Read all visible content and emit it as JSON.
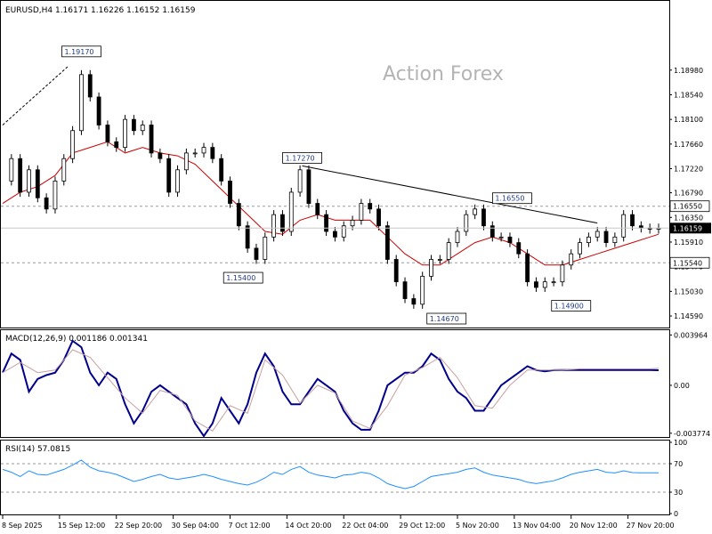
{
  "chart_data": [
    {
      "type": "candlestick",
      "panel": "price",
      "header": "EURUSD,H4  1.16171 1.16226 1.16152 1.16159",
      "watermark": "Action Forex",
      "ylim": [
        1.144,
        1.202
      ],
      "y_ticks": [
        "1.18980",
        "1.18540",
        "1.18100",
        "1.17660",
        "1.17220",
        "1.16790",
        "1.16350",
        "1.15910",
        "1.15470",
        "1.15030",
        "1.14590"
      ],
      "current_price": "1.16159",
      "series": [
        {
          "name": "EURUSD H4 close",
          "color": "#000000",
          "x": [
            0,
            4,
            8,
            12,
            16,
            20,
            24,
            28,
            32,
            36,
            40,
            44,
            48,
            52,
            56,
            60,
            64,
            68,
            72,
            76,
            80,
            84,
            88,
            92,
            96,
            100,
            104,
            108,
            112,
            116,
            120,
            124,
            128,
            132,
            136,
            140,
            144,
            148,
            152,
            156,
            160,
            164,
            168,
            172,
            176,
            180,
            184,
            188,
            192,
            196,
            200,
            204,
            208,
            212,
            216,
            220,
            224,
            228,
            232,
            236,
            240,
            244,
            248,
            252,
            256,
            260,
            264,
            268,
            272,
            276,
            280,
            284,
            288,
            292,
            296,
            300
          ],
          "values": [
            1.17,
            1.174,
            1.168,
            1.172,
            1.167,
            1.165,
            1.17,
            1.174,
            1.179,
            1.189,
            1.185,
            1.18,
            1.177,
            1.176,
            1.181,
            1.179,
            1.18,
            1.175,
            1.174,
            1.168,
            1.172,
            1.175,
            1.175,
            1.176,
            1.174,
            1.17,
            1.166,
            1.162,
            1.158,
            1.156,
            1.16,
            1.164,
            1.161,
            1.168,
            1.172,
            1.166,
            1.164,
            1.161,
            1.16,
            1.162,
            1.163,
            1.166,
            1.165,
            1.162,
            1.156,
            1.152,
            1.149,
            1.148,
            1.153,
            1.156,
            1.156,
            1.159,
            1.161,
            1.164,
            1.165,
            1.162,
            1.16,
            1.16,
            1.159,
            1.157,
            1.152,
            1.151,
            1.152,
            1.152,
            1.155,
            1.157,
            1.159,
            1.16,
            1.161,
            1.159,
            1.16,
            1.164,
            1.162,
            1.1616,
            1.1614,
            1.16159
          ]
        },
        {
          "name": "moving average",
          "color": "#cc0000",
          "x": [
            0,
            8,
            16,
            24,
            32,
            40,
            48,
            56,
            64,
            72,
            80,
            88,
            96,
            104,
            112,
            120,
            128,
            136,
            144,
            152,
            160,
            168,
            176,
            184,
            192,
            200,
            208,
            216,
            224,
            232,
            240,
            248,
            256,
            264,
            272,
            280,
            288,
            296,
            300
          ],
          "values": [
            1.166,
            1.168,
            1.169,
            1.171,
            1.175,
            1.176,
            1.177,
            1.175,
            1.176,
            1.175,
            1.1745,
            1.173,
            1.17,
            1.167,
            1.164,
            1.161,
            1.1605,
            1.163,
            1.164,
            1.163,
            1.163,
            1.163,
            1.16,
            1.157,
            1.155,
            1.155,
            1.157,
            1.159,
            1.16,
            1.159,
            1.157,
            1.155,
            1.155,
            1.156,
            1.157,
            1.158,
            1.159,
            1.16,
            1.1605
          ]
        }
      ],
      "annotations": [
        {
          "label": "1.19170",
          "x": 36,
          "y": 1.1917
        },
        {
          "label": "1.15400",
          "x": 110,
          "y": 1.154
        },
        {
          "label": "1.17270",
          "x": 137,
          "y": 1.1727
        },
        {
          "label": "1.14670",
          "x": 203,
          "y": 1.1467
        },
        {
          "label": "1.16550",
          "x": 233,
          "y": 1.1655
        },
        {
          "label": "1.14900",
          "x": 260,
          "y": 1.149
        },
        {
          "label": "1.16550",
          "x": 300,
          "y": 1.1655
        },
        {
          "label": "1.15540",
          "x": 300,
          "y": 1.1554
        }
      ],
      "levels": [
        1.1655,
        1.1554
      ],
      "trendline": {
        "x": [
          137,
          272
        ],
        "y": [
          1.1727,
          1.1625
        ]
      }
    },
    {
      "type": "line",
      "panel": "macd",
      "header": "MACD(12,26,9) 0.001186 0.001341",
      "ylim": [
        -0.004,
        0.0042
      ],
      "y_ticks": [
        "0.003964",
        "0.00",
        "-0.003774"
      ],
      "series": [
        {
          "name": "MACD main",
          "color": "#00008b",
          "x": [
            0,
            4,
            8,
            12,
            16,
            20,
            24,
            28,
            32,
            36,
            40,
            44,
            48,
            52,
            56,
            60,
            64,
            68,
            72,
            76,
            80,
            84,
            88,
            92,
            96,
            100,
            104,
            108,
            112,
            116,
            120,
            124,
            128,
            132,
            136,
            140,
            144,
            148,
            152,
            156,
            160,
            164,
            168,
            172,
            176,
            180,
            184,
            188,
            192,
            196,
            200,
            204,
            208,
            212,
            216,
            220,
            224,
            228,
            232,
            236,
            240,
            244,
            248,
            252,
            256,
            260,
            264,
            268,
            272,
            276,
            280,
            284,
            288,
            292,
            296,
            300
          ],
          "values": [
            0.001,
            0.0025,
            0.002,
            -0.0005,
            0.0005,
            0.0008,
            0.001,
            0.002,
            0.0035,
            0.003,
            0.001,
            0.0,
            0.001,
            0.0005,
            -0.0015,
            -0.003,
            -0.002,
            -0.0005,
            0.0,
            -0.0005,
            -0.001,
            -0.0015,
            -0.003,
            -0.004,
            -0.003,
            -0.001,
            -0.002,
            -0.003,
            -0.0015,
            0.001,
            0.0025,
            0.0015,
            -0.0005,
            -0.0015,
            -0.0015,
            -0.0005,
            0.0005,
            0.0,
            -0.0005,
            -0.002,
            -0.003,
            -0.0035,
            -0.0035,
            -0.002,
            0.0,
            0.0005,
            0.001,
            0.001,
            0.0015,
            0.0025,
            0.002,
            0.0005,
            -0.0005,
            -0.001,
            -0.002,
            -0.002,
            -0.001,
            0.0,
            0.0005,
            0.001,
            0.0015,
            0.0012,
            0.0011,
            0.00119,
            0.0012,
            0.0012,
            0.0012,
            0.0012,
            0.0012,
            0.0012,
            0.0012,
            0.0012,
            0.0012,
            0.0012,
            0.0012,
            0.001186
          ]
        },
        {
          "name": "MACD signal",
          "color": "#c8a0a0",
          "x": [
            0,
            8,
            16,
            24,
            32,
            40,
            48,
            56,
            64,
            72,
            80,
            88,
            96,
            104,
            112,
            120,
            128,
            136,
            144,
            152,
            160,
            168,
            176,
            184,
            192,
            200,
            208,
            216,
            224,
            232,
            240,
            248,
            256,
            264,
            272,
            280,
            288,
            296,
            300
          ],
          "values": [
            0.001,
            0.0018,
            0.001,
            0.0012,
            0.0028,
            0.0022,
            0.0006,
            -0.001,
            -0.0022,
            -0.0004,
            -0.0008,
            -0.0028,
            -0.0036,
            -0.0016,
            -0.0022,
            0.002,
            0.0008,
            -0.0014,
            0.0,
            -0.0006,
            -0.0028,
            -0.0034,
            -0.0016,
            0.0008,
            0.0014,
            0.0022,
            0.0006,
            -0.0016,
            -0.0018,
            0.0,
            0.0012,
            0.0012,
            0.0012,
            0.0013,
            0.0013,
            0.0013,
            0.0013,
            0.0013,
            0.001341
          ]
        }
      ]
    },
    {
      "type": "line",
      "panel": "rsi",
      "header": "RSI(14) 57.0815",
      "ylim": [
        0,
        100
      ],
      "y_ticks": [
        "100",
        "70",
        "30",
        "0"
      ],
      "levels": [
        70,
        30
      ],
      "series": [
        {
          "name": "RSI",
          "color": "#1e90ff",
          "x": [
            0,
            4,
            8,
            12,
            16,
            20,
            24,
            28,
            32,
            36,
            40,
            44,
            48,
            52,
            56,
            60,
            64,
            68,
            72,
            76,
            80,
            84,
            88,
            92,
            96,
            100,
            104,
            108,
            112,
            116,
            120,
            124,
            128,
            132,
            136,
            140,
            144,
            148,
            152,
            156,
            160,
            164,
            168,
            172,
            176,
            180,
            184,
            188,
            192,
            196,
            200,
            204,
            208,
            212,
            216,
            220,
            224,
            228,
            232,
            236,
            240,
            244,
            248,
            252,
            256,
            260,
            264,
            268,
            272,
            276,
            280,
            284,
            288,
            292,
            296,
            300
          ],
          "values": [
            62,
            58,
            52,
            60,
            55,
            54,
            58,
            62,
            68,
            75,
            65,
            60,
            58,
            55,
            50,
            45,
            48,
            52,
            55,
            50,
            48,
            50,
            52,
            55,
            52,
            48,
            45,
            42,
            40,
            44,
            50,
            58,
            55,
            62,
            66,
            58,
            54,
            52,
            50,
            54,
            55,
            58,
            56,
            50,
            42,
            38,
            35,
            38,
            45,
            52,
            54,
            56,
            58,
            62,
            64,
            58,
            54,
            52,
            50,
            48,
            44,
            42,
            44,
            46,
            50,
            55,
            58,
            60,
            62,
            58,
            57,
            60,
            57.5,
            57.2,
            57.1,
            57.0815
          ]
        }
      ]
    }
  ],
  "x_axis": {
    "labels": [
      {
        "text": "8 Sep 2025",
        "x": 0
      },
      {
        "text": "15 Sep 12:00",
        "x": 26
      },
      {
        "text": "22 Sep 20:00",
        "x": 52
      },
      {
        "text": "30 Sep 04:00",
        "x": 78
      },
      {
        "text": "7 Oct 12:00",
        "x": 104
      },
      {
        "text": "14 Oct 20:00",
        "x": 130
      },
      {
        "text": "22 Oct 04:00",
        "x": 156
      },
      {
        "text": "29 Oct 12:00",
        "x": 182
      },
      {
        "text": "5 Nov 20:00",
        "x": 208
      },
      {
        "text": "13 Nov 04:00",
        "x": 234
      },
      {
        "text": "20 Nov 12:00",
        "x": 260
      },
      {
        "text": "27 Nov 20:00",
        "x": 286
      }
    ]
  }
}
